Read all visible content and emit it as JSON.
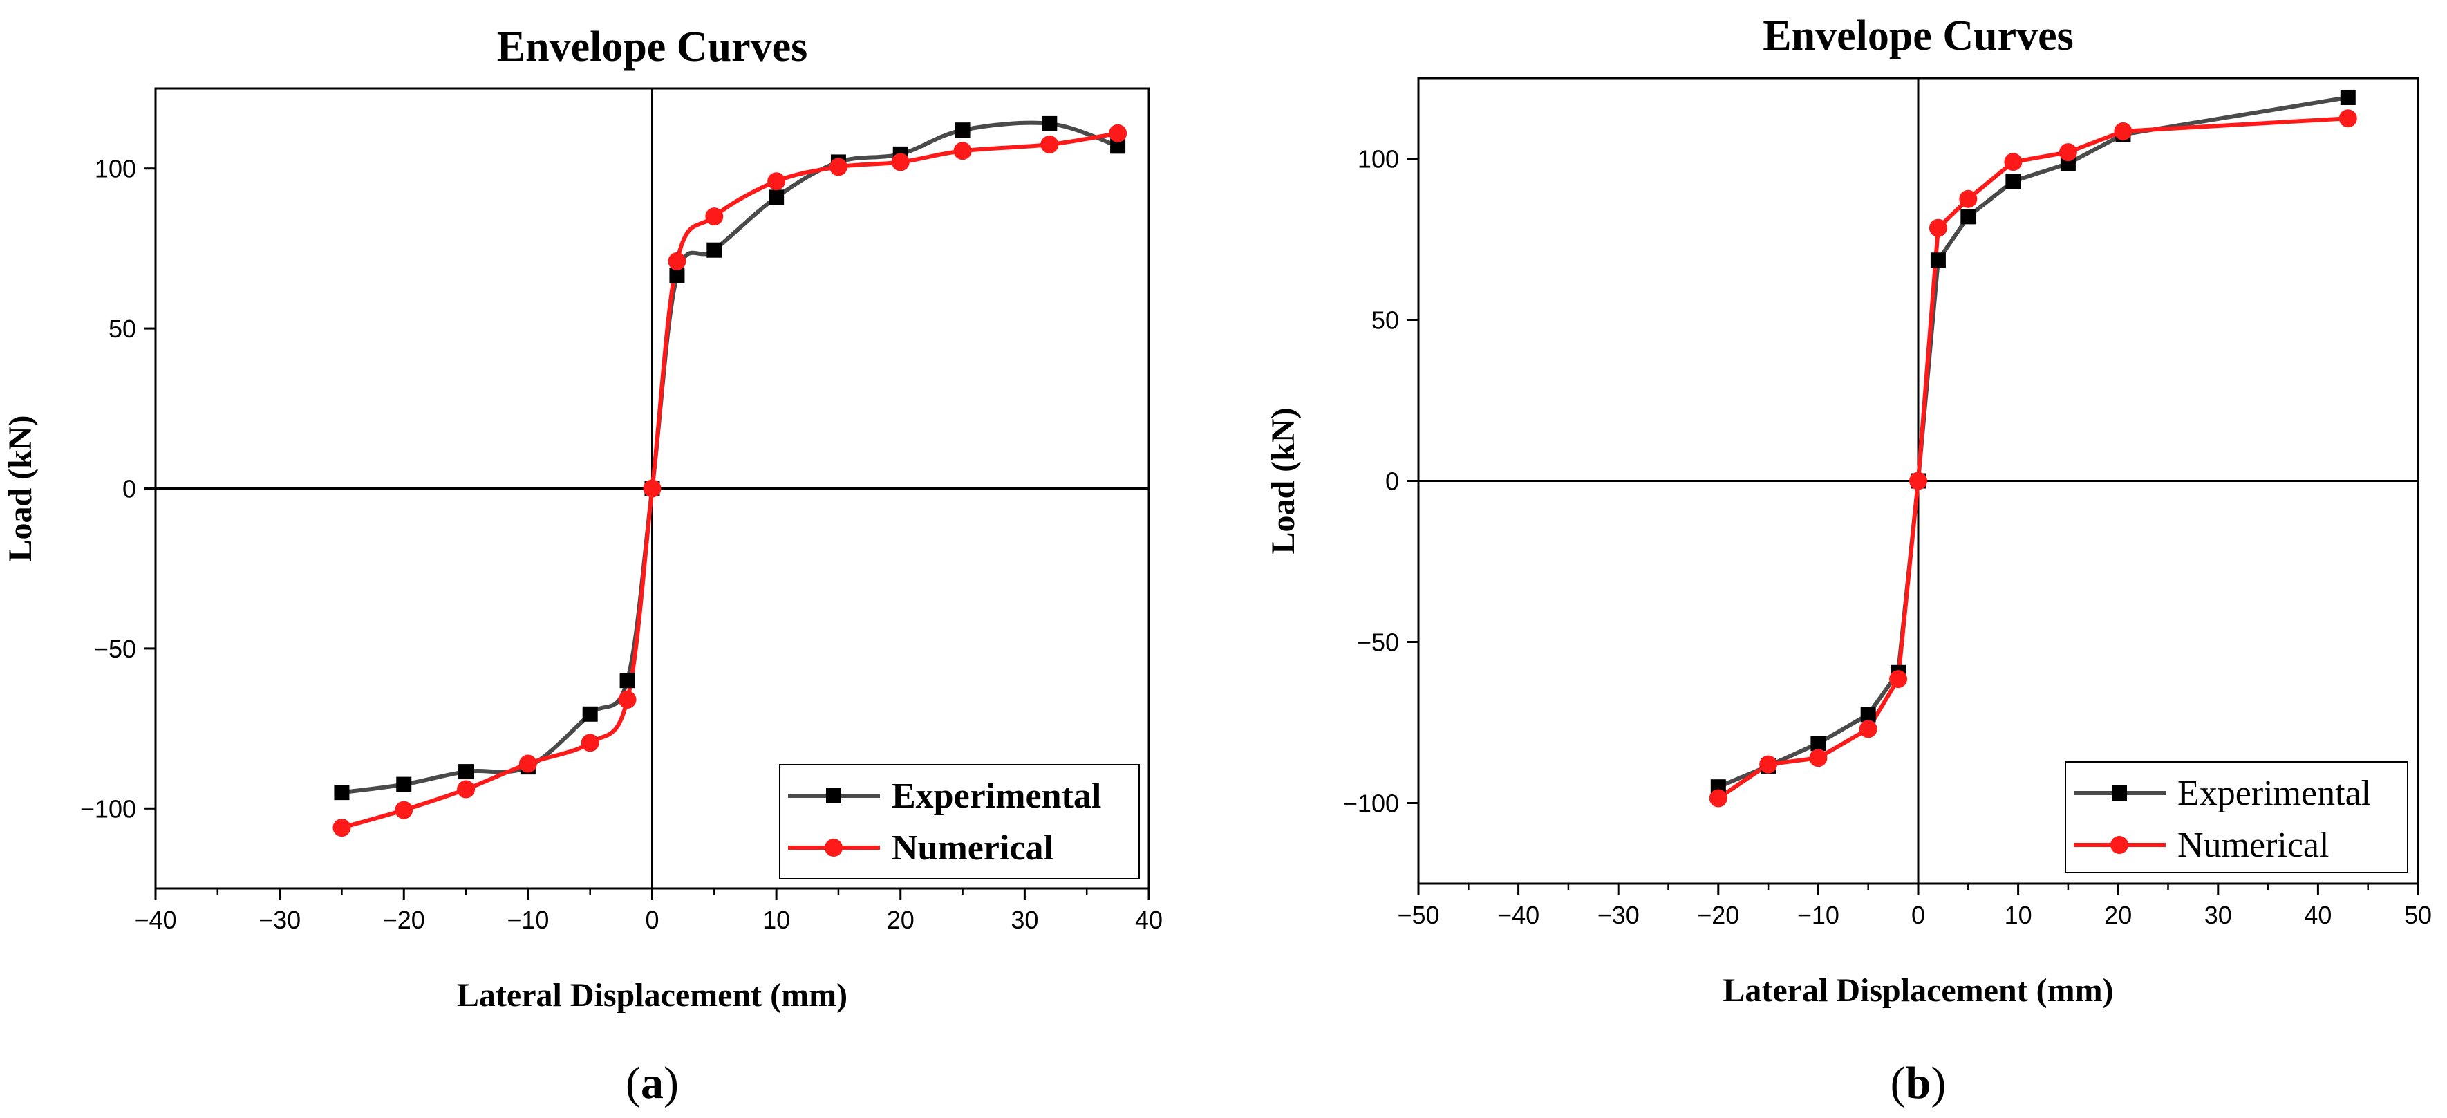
{
  "chart_data": [
    {
      "type": "line",
      "panel_label": "a",
      "title": "Envelope Curves",
      "xlabel": "Lateral Displacement (mm)",
      "ylabel": "Load (kN)",
      "xlim": [
        -40,
        40
      ],
      "ylim": [
        -125,
        125
      ],
      "xticks": [
        -40,
        -30,
        -20,
        -10,
        0,
        10,
        20,
        30,
        40
      ],
      "xtick_labels": [
        "−40",
        "−30",
        "−20",
        "−10",
        "0",
        "10",
        "20",
        "30",
        "40"
      ],
      "yticks": [
        -100,
        -50,
        0,
        50,
        100
      ],
      "ytick_labels": [
        "−100",
        "−50",
        "0",
        "50",
        "100"
      ],
      "legend_position": "bottom-right",
      "legend_bold": true,
      "smooth": true,
      "series": [
        {
          "name": "Experimental",
          "color": "#4a4a4a",
          "marker": "square",
          "x": [
            -25,
            -20,
            -15,
            -10,
            -5,
            -2,
            0,
            2,
            5,
            10,
            15,
            20,
            25,
            32,
            37.5
          ],
          "y": [
            -95,
            -92.5,
            -88.5,
            -87,
            -70.5,
            -60,
            0,
            66.5,
            74.5,
            91,
            102,
            104.5,
            112,
            114,
            107
          ]
        },
        {
          "name": "Numerical",
          "color": "#ff1a1a",
          "marker": "circle",
          "x": [
            -25,
            -20,
            -15,
            -10,
            -5,
            -2,
            0,
            2,
            5,
            10,
            15,
            20,
            25,
            32,
            37.5
          ],
          "y": [
            -106,
            -100.5,
            -94,
            -86,
            -79.5,
            -66,
            0,
            71,
            85,
            96,
            100.5,
            102,
            105.5,
            107.5,
            111
          ]
        }
      ]
    },
    {
      "type": "line",
      "panel_label": "b",
      "title": "Envelope Curves",
      "xlabel": "Lateral Displacement (mm)",
      "ylabel": "Load (kN)",
      "xlim": [
        -50,
        50
      ],
      "ylim": [
        -125,
        125
      ],
      "xticks": [
        -50,
        -40,
        -30,
        -20,
        -10,
        0,
        10,
        20,
        30,
        40,
        50
      ],
      "xtick_labels": [
        "−50",
        "−40",
        "−30",
        "−20",
        "−10",
        "0",
        "10",
        "20",
        "30",
        "40",
        "50"
      ],
      "yticks": [
        -100,
        -50,
        0,
        50,
        100
      ],
      "ytick_labels": [
        "−100",
        "−50",
        "0",
        "50",
        "100"
      ],
      "legend_position": "bottom-right",
      "legend_bold": false,
      "smooth": false,
      "series": [
        {
          "name": "Experimental",
          "color": "#4a4a4a",
          "marker": "square",
          "x": [
            -20,
            -15,
            -10,
            -5,
            -2,
            0,
            2,
            5,
            9.5,
            15,
            20.5,
            43
          ],
          "y": [
            -95,
            -88.5,
            -81.5,
            -72.5,
            -59.5,
            0,
            68.5,
            82,
            93,
            98.5,
            107.5,
            119
          ]
        },
        {
          "name": "Numerical",
          "color": "#ff1a1a",
          "marker": "circle",
          "x": [
            -20,
            -15,
            -10,
            -5,
            -2,
            0,
            2,
            5,
            9.5,
            15,
            20.5,
            43
          ],
          "y": [
            -98.5,
            -88,
            -86,
            -77,
            -61.5,
            0,
            78.5,
            87.5,
            99,
            102,
            108.5,
            112.5
          ]
        }
      ]
    }
  ]
}
